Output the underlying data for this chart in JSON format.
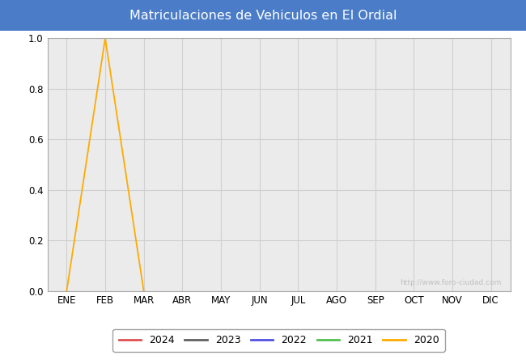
{
  "title": "Matriculaciones de Vehiculos en El Ordial",
  "title_bg_color": "#4a7cc7",
  "title_font_color": "white",
  "months": [
    "ENE",
    "FEB",
    "MAR",
    "ABR",
    "MAY",
    "JUN",
    "JUL",
    "AGO",
    "SEP",
    "OCT",
    "NOV",
    "DIC"
  ],
  "ylim": [
    0.0,
    1.0
  ],
  "yticks": [
    0.0,
    0.2,
    0.4,
    0.6,
    0.8,
    1.0
  ],
  "series_order": [
    "2024",
    "2023",
    "2022",
    "2021",
    "2020"
  ],
  "series": {
    "2024": {
      "color": "#e05050",
      "data": [
        null,
        null,
        null,
        null,
        null,
        null,
        null,
        null,
        null,
        null,
        null,
        null
      ]
    },
    "2023": {
      "color": "#606060",
      "data": [
        null,
        null,
        null,
        null,
        null,
        null,
        null,
        null,
        null,
        null,
        null,
        null
      ]
    },
    "2022": {
      "color": "#5050e0",
      "data": [
        null,
        null,
        null,
        null,
        null,
        null,
        null,
        null,
        null,
        null,
        null,
        null
      ]
    },
    "2021": {
      "color": "#50c050",
      "data": [
        null,
        null,
        null,
        null,
        null,
        null,
        null,
        null,
        null,
        null,
        null,
        null
      ]
    },
    "2020": {
      "color": "#ffaa00",
      "data": [
        0.0,
        1.0,
        0.0,
        null,
        null,
        null,
        null,
        null,
        null,
        null,
        null,
        null
      ]
    }
  },
  "plot_bg_color": "#ebebeb",
  "grid_color": "#d0d0d0",
  "watermark": "http://www.foro-ciudad.com",
  "legend_years": [
    "2024",
    "2023",
    "2022",
    "2021",
    "2020"
  ],
  "legend_colors": {
    "2024": "#e05050",
    "2023": "#606060",
    "2022": "#5050e0",
    "2021": "#50c050",
    "2020": "#ffaa00"
  }
}
